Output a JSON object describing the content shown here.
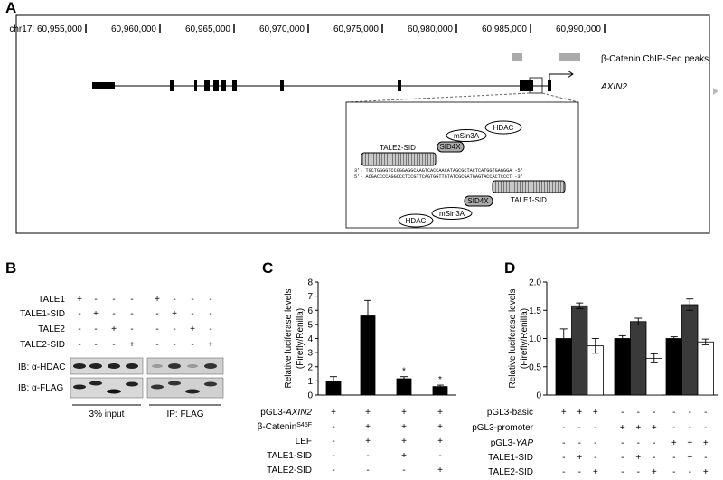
{
  "panel_a": {
    "label": "A",
    "axis": {
      "xlim": [
        60955000,
        60990000
      ],
      "ticks": [
        {
          "value": 60955000,
          "label": "chr17: 60,955,000"
        },
        {
          "value": 60960000,
          "label": "60,960,000"
        },
        {
          "value": 60965000,
          "label": "60,965,000"
        },
        {
          "value": 60970000,
          "label": "60,970,000"
        },
        {
          "value": 60975000,
          "label": "60,975,000"
        },
        {
          "value": 60980000,
          "label": "60,980,000"
        },
        {
          "value": 60985000,
          "label": "60,985,000"
        },
        {
          "value": 60990000,
          "label": "60,990,000"
        }
      ]
    },
    "track_labels": {
      "peaks": "β-Catenin ChIP-Seq peaks",
      "gene": "AXIN2"
    },
    "inset": {
      "top_complex": [
        "HDAC",
        "mSin3A",
        "SID4X"
      ],
      "top_tale": "TALE2-SID",
      "strand_top": "3'- TGCTGGGGTCCGGGAGGCAAGTCACCAACATAGCGCTACTCATGGTGAGGGA -5'",
      "strand_bottom": "5'- ACGACCCCAGGCCCTCCGTTCAGTGGTTGTATCGCGATGAGTACCACTCCCT -3'",
      "bottom_complex": [
        "SID4X",
        "mSin3A",
        "HDAC"
      ],
      "bottom_tale": "TALE1-SID"
    }
  },
  "panel_b": {
    "label": "B",
    "rows": [
      {
        "label": "TALE1",
        "signs": [
          "+",
          "-",
          "-",
          "-",
          "+",
          "-",
          "-",
          "-"
        ]
      },
      {
        "label": "TALE1-SID",
        "signs": [
          "-",
          "+",
          "-",
          "-",
          "-",
          "+",
          "-",
          "-"
        ]
      },
      {
        "label": "TALE2",
        "signs": [
          "-",
          "-",
          "+",
          "-",
          "-",
          "-",
          "+",
          "-"
        ]
      },
      {
        "label": "TALE2-SID",
        "signs": [
          "-",
          "-",
          "-",
          "+",
          "-",
          "-",
          "-",
          "+"
        ]
      }
    ],
    "blots": [
      "IB: α-HDAC",
      "IB: α-FLAG"
    ],
    "groups": [
      "3% input",
      "IP: FLAG"
    ]
  },
  "chart_data": [
    {
      "type": "bar",
      "panel_label": "C",
      "ylabel": [
        "Relative luciferase levels",
        "(Firefly/Renilla)"
      ],
      "categories": [
        null,
        null,
        null,
        null
      ],
      "values": [
        1.0,
        5.6,
        1.15,
        0.6
      ],
      "errors": [
        0.3,
        1.1,
        0.15,
        0.1
      ],
      "color": "#000000",
      "ylim": [
        0,
        8
      ],
      "yticks": [
        0,
        1,
        2,
        3,
        4,
        5,
        6,
        7,
        8
      ],
      "annotations": [
        {
          "index": 2,
          "text": "*"
        },
        {
          "index": 3,
          "text": "*"
        }
      ],
      "conditions": [
        {
          "label": "pGL3-",
          "italic": "AXIN2",
          "signs": [
            "+",
            "+",
            "+",
            "+"
          ]
        },
        {
          "label": "β-Catenin",
          "sup": "S45F",
          "signs": [
            "-",
            "+",
            "+",
            "+"
          ]
        },
        {
          "label": "LEF",
          "signs": [
            "-",
            "+",
            "+",
            "+"
          ]
        },
        {
          "label": "TALE1-SID",
          "signs": [
            "-",
            "-",
            "+",
            "-"
          ]
        },
        {
          "label": "TALE2-SID",
          "signs": [
            "-",
            "-",
            "-",
            "+"
          ]
        }
      ]
    },
    {
      "type": "bar",
      "panel_label": "D",
      "ylabel": [
        "Relative luciferase levels",
        "(Firefly/Renilla)"
      ],
      "categories": [
        null,
        null,
        null
      ],
      "series": [
        {
          "color": "#000000",
          "values": [
            1.0,
            1.0,
            1.0
          ],
          "errors": [
            0.17,
            0.05,
            0.03
          ]
        },
        {
          "color": "#3a3a3a",
          "values": [
            1.58,
            1.3,
            1.6
          ],
          "errors": [
            0.05,
            0.06,
            0.1
          ]
        },
        {
          "color": "#ffffff",
          "values": [
            0.87,
            0.65,
            0.94
          ],
          "errors": [
            0.13,
            0.08,
            0.05
          ]
        }
      ],
      "ylim": [
        0,
        2
      ],
      "yticks": [
        0,
        0.5,
        {
          "value": 1,
          "label": "1.0"
        },
        1.5,
        {
          "value": 2,
          "label": "2.0"
        }
      ],
      "conditions": [
        {
          "label": "pGL3-basic",
          "signs": [
            "+",
            "+",
            "+",
            "-",
            "-",
            "-",
            "-",
            "-",
            "-"
          ]
        },
        {
          "label": "pGL3-promoter",
          "signs": [
            "-",
            "-",
            "-",
            "+",
            "+",
            "+",
            "-",
            "-",
            "-"
          ]
        },
        {
          "label": "pGL3-",
          "italic": "YAP",
          "signs": [
            "-",
            "-",
            "-",
            "-",
            "-",
            "-",
            "+",
            "+",
            "+"
          ]
        },
        {
          "label": "TALE1-SID",
          "signs": [
            "-",
            "+",
            "-",
            "-",
            "+",
            "-",
            "-",
            "+",
            "-"
          ]
        },
        {
          "label": "TALE2-SID",
          "signs": [
            "-",
            "-",
            "+",
            "-",
            "-",
            "+",
            "-",
            "-",
            "+"
          ]
        }
      ]
    }
  ]
}
